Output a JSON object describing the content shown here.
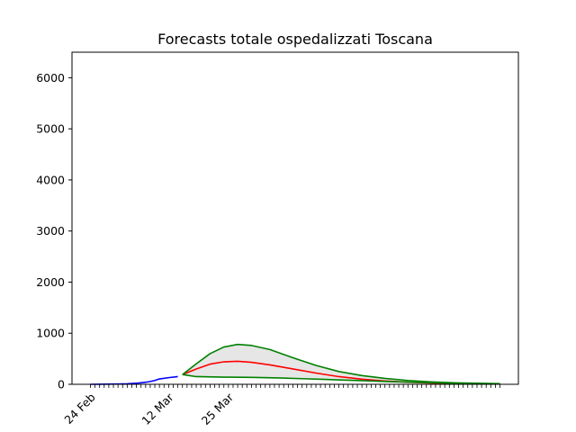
{
  "chart_data": {
    "type": "line",
    "title": "Forecasts totale ospedalizzati Toscana",
    "xlabel": "",
    "ylabel": "",
    "x_start": "2020-02-24",
    "x_end": "2020-05-23",
    "xlim": [
      "2020-02-20",
      "2020-05-27"
    ],
    "ylim": [
      0,
      6500
    ],
    "yticks": [
      0,
      1000,
      2000,
      3000,
      4000,
      5000,
      6000
    ],
    "xtick_labels": [
      {
        "date": "2020-02-24",
        "label": "24 Feb"
      },
      {
        "date": "2020-03-12",
        "label": "12 Mar"
      },
      {
        "date": "2020-03-25",
        "label": "25 Mar"
      }
    ],
    "grid": false,
    "legend": "none",
    "observed": {
      "color": "#0000ff",
      "points": [
        [
          "2020-02-24",
          0
        ],
        [
          "2020-02-26",
          2
        ],
        [
          "2020-02-28",
          4
        ],
        [
          "2020-03-01",
          6
        ],
        [
          "2020-03-03",
          10
        ],
        [
          "2020-03-05",
          20
        ],
        [
          "2020-03-07",
          40
        ],
        [
          "2020-03-08",
          55
        ],
        [
          "2020-03-09",
          75
        ],
        [
          "2020-03-10",
          105
        ],
        [
          "2020-03-12",
          130
        ],
        [
          "2020-03-14",
          150
        ]
      ]
    },
    "series": [
      {
        "role": "forecast",
        "color": "#ff0000",
        "points": [
          [
            "2020-03-15",
            190
          ],
          [
            "2020-03-18",
            300
          ],
          [
            "2020-03-21",
            395
          ],
          [
            "2020-03-24",
            440
          ],
          [
            "2020-03-27",
            450
          ],
          [
            "2020-03-30",
            430
          ],
          [
            "2020-04-03",
            380
          ],
          [
            "2020-04-08",
            300
          ],
          [
            "2020-04-13",
            220
          ],
          [
            "2020-04-18",
            150
          ],
          [
            "2020-04-23",
            100
          ],
          [
            "2020-04-28",
            65
          ],
          [
            "2020-05-03",
            40
          ],
          [
            "2020-05-08",
            25
          ],
          [
            "2020-05-13",
            15
          ],
          [
            "2020-05-18",
            8
          ],
          [
            "2020-05-23",
            5
          ]
        ]
      },
      {
        "role": "upper",
        "color": "#008000",
        "points": [
          [
            "2020-03-15",
            190
          ],
          [
            "2020-03-18",
            400
          ],
          [
            "2020-03-21",
            600
          ],
          [
            "2020-03-24",
            730
          ],
          [
            "2020-03-27",
            780
          ],
          [
            "2020-03-30",
            760
          ],
          [
            "2020-04-03",
            680
          ],
          [
            "2020-04-08",
            520
          ],
          [
            "2020-04-13",
            370
          ],
          [
            "2020-04-18",
            250
          ],
          [
            "2020-04-23",
            170
          ],
          [
            "2020-04-28",
            115
          ],
          [
            "2020-05-03",
            75
          ],
          [
            "2020-05-08",
            48
          ],
          [
            "2020-05-13",
            30
          ],
          [
            "2020-05-18",
            20
          ],
          [
            "2020-05-23",
            12
          ]
        ]
      },
      {
        "role": "lower",
        "color": "#008000",
        "points": [
          [
            "2020-03-15",
            190
          ],
          [
            "2020-03-18",
            150
          ],
          [
            "2020-03-24",
            140
          ],
          [
            "2020-03-30",
            135
          ],
          [
            "2020-04-05",
            125
          ],
          [
            "2020-04-10",
            110
          ],
          [
            "2020-04-15",
            95
          ],
          [
            "2020-04-20",
            80
          ],
          [
            "2020-04-25",
            65
          ],
          [
            "2020-04-30",
            50
          ],
          [
            "2020-05-05",
            38
          ],
          [
            "2020-05-10",
            27
          ],
          [
            "2020-05-15",
            18
          ],
          [
            "2020-05-20",
            12
          ],
          [
            "2020-05-23",
            9
          ]
        ]
      }
    ],
    "band_fill": "#e6e6e6"
  }
}
